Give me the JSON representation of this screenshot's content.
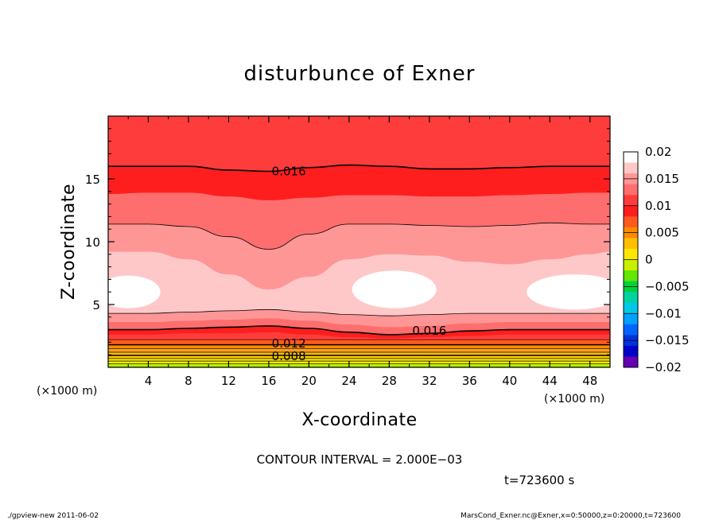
{
  "chart_data": {
    "type": "heatmap",
    "title": "disturbunce of Exner",
    "xlabel": "X-coordinate",
    "ylabel": "Z-coordinate",
    "x_unit": "(×1000 m)",
    "x_unit_right": "(×1000 m)",
    "xlim": [
      0,
      50
    ],
    "ylim": [
      0,
      20
    ],
    "x_ticks": [
      4,
      8,
      12,
      16,
      20,
      24,
      28,
      32,
      36,
      40,
      44,
      48
    ],
    "y_ticks": [
      5,
      10,
      15
    ],
    "contour_labels": [
      {
        "text": "0.016",
        "x": 18,
        "z": 15.6
      },
      {
        "text": "0.016",
        "x": 32,
        "z": 2.9
      },
      {
        "text": "0.012",
        "x": 18,
        "z": 1.9
      },
      {
        "text": "0.008",
        "x": 18,
        "z": 0.9
      }
    ],
    "colorbar": {
      "ticks": [
        "0.02",
        "0.015",
        "0.01",
        "0.005",
        "0",
        "−0.005",
        "−0.01",
        "−0.015",
        "−0.02"
      ],
      "colors": [
        "#ffffff",
        "#ffc8c8",
        "#ff9696",
        "#ff6e6e",
        "#ff3c3c",
        "#ff1e1e",
        "#ff5a1e",
        "#ff8c00",
        "#ffbe00",
        "#ffe600",
        "#c8f000",
        "#64e600",
        "#00d23c",
        "#00d2a0",
        "#00c8e6",
        "#00a0ff",
        "#0064ff",
        "#0032dc",
        "#0000c8",
        "#6400b4"
      ]
    },
    "contour_interval_text": "CONTOUR INTERVAL = 2.000E−03",
    "time_text": "t=723600 s"
  },
  "footer": {
    "left": "./gpview-new   2011-06-02",
    "right": "MarsCond_Exner.nc@Exner,x=0:50000,z=0:20000,t=723600"
  }
}
